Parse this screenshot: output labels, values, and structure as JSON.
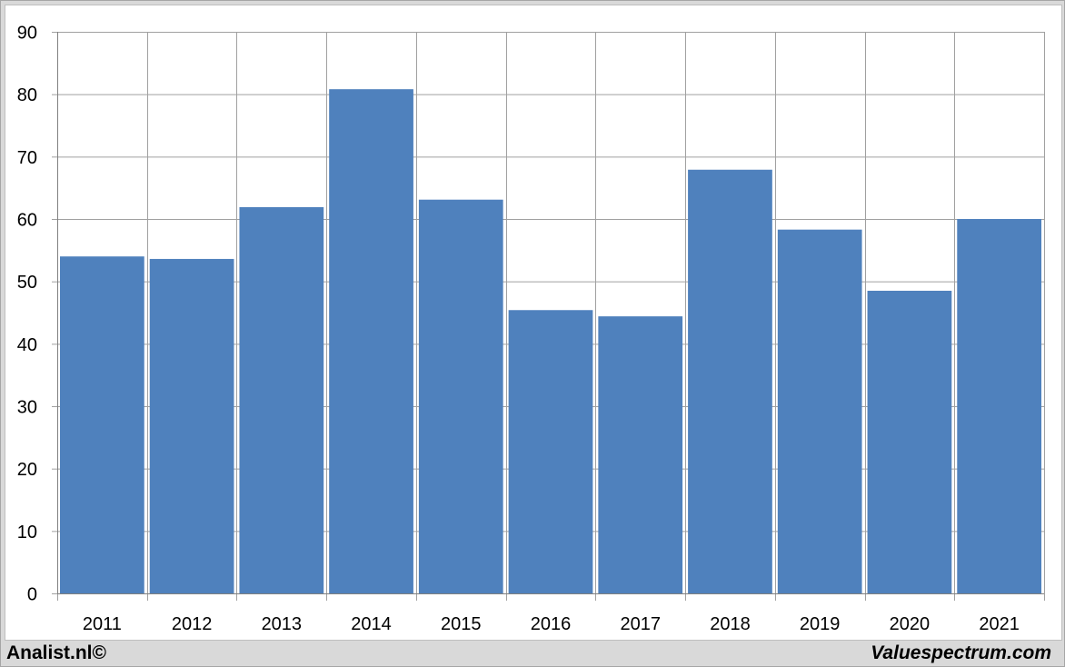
{
  "footer": {
    "left_text": "Analist.nl©",
    "right_text": "Valuespectrum.com"
  },
  "colors": {
    "bar": "#4f81bd",
    "grid": "#a0a0a0",
    "background": "#ffffff",
    "frame": "#d9d9d9"
  },
  "chart_data": {
    "type": "bar",
    "title": "",
    "xlabel": "",
    "ylabel": "",
    "categories": [
      "2011",
      "2012",
      "2013",
      "2014",
      "2015",
      "2016",
      "2017",
      "2018",
      "2019",
      "2020",
      "2021"
    ],
    "values": [
      54.0,
      53.6,
      61.9,
      80.8,
      63.1,
      45.4,
      44.4,
      67.9,
      58.3,
      48.5,
      60.0
    ],
    "ylim": [
      0,
      90
    ],
    "yticks": [
      0,
      10,
      20,
      30,
      40,
      50,
      60,
      70,
      80,
      90
    ],
    "grid": true,
    "legend": "none"
  }
}
